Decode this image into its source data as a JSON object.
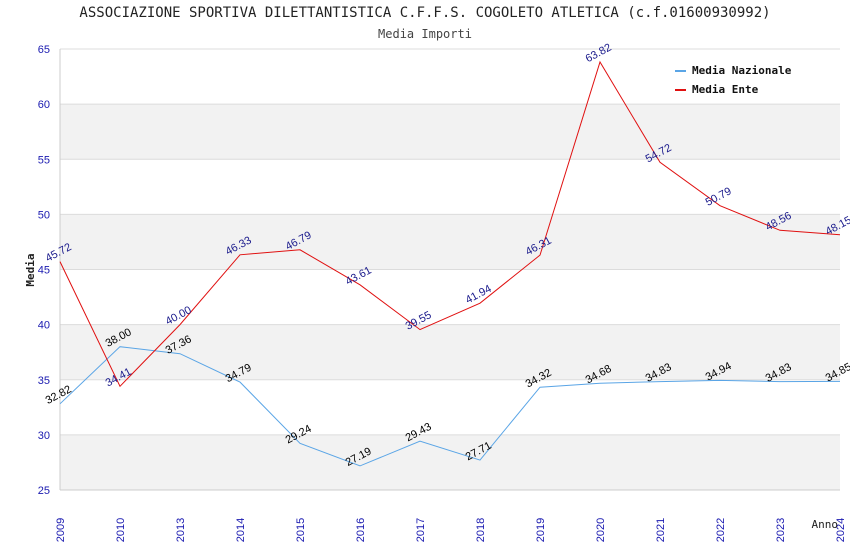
{
  "page": {
    "title": "ASSOCIAZIONE SPORTIVA DILETTANTISTICA C.F.F.S. COGOLETO ATLETICA (c.f.01600930992)",
    "subtitle": "Media Importi"
  },
  "chart_data": {
    "type": "line",
    "title": "ASSOCIAZIONE SPORTIVA DILETTANTISTICA C.F.F.S. COGOLETO ATLETICA (c.f.01600930992)",
    "subtitle": "Media Importi",
    "xlabel": "Anno",
    "ylabel": "Media",
    "categories": [
      "2009",
      "2010",
      "2013",
      "2014",
      "2015",
      "2016",
      "2017",
      "2018",
      "2019",
      "2020",
      "2021",
      "2022",
      "2023",
      "2024"
    ],
    "ylim": [
      25,
      65
    ],
    "yticks": [
      25,
      30,
      35,
      40,
      45,
      50,
      55,
      60,
      65
    ],
    "grid": true,
    "legend_position": "top-right",
    "series": [
      {
        "name": "Media Nazionale",
        "color": "#5aa5e6",
        "label_color": "#000000",
        "values": [
          32.82,
          38.0,
          37.36,
          34.79,
          29.24,
          27.19,
          29.43,
          27.71,
          34.32,
          34.68,
          34.83,
          34.94,
          34.83,
          34.85
        ],
        "labels": [
          "32.82",
          "38.00",
          "37.36",
          "34.79",
          "29.24",
          "27.19",
          "29.43",
          "27.71",
          "34.32",
          "34.68",
          "34.83",
          "34.94",
          "34.83",
          "34.85"
        ]
      },
      {
        "name": "Media Ente",
        "color": "#e01010",
        "label_color": "#1a1a8c",
        "values": [
          45.72,
          34.41,
          40.0,
          46.33,
          46.79,
          43.61,
          39.55,
          41.94,
          46.31,
          63.82,
          54.72,
          50.79,
          48.56,
          48.15
        ],
        "labels": [
          "45.72",
          "34.41",
          "40.00",
          "46.33",
          "46.79",
          "43.61",
          "39.55",
          "41.94",
          "46.31",
          "63.82",
          "54.72",
          "50.79",
          "48.56",
          "48.15"
        ]
      }
    ]
  }
}
